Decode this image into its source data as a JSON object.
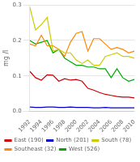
{
  "chart_data": {
    "type": "line",
    "x": [
      1992,
      1993,
      1994,
      1995,
      1996,
      1997,
      1998,
      1999,
      2000,
      2001,
      2002,
      2003,
      2004,
      2005,
      2006,
      2007,
      2008,
      2009,
      2010
    ],
    "series": [
      {
        "name": "East (190)",
        "color": "#cc0000",
        "values": [
          0.113,
          0.095,
          0.088,
          0.103,
          0.102,
          0.085,
          0.092,
          0.088,
          0.09,
          0.085,
          0.065,
          0.06,
          0.053,
          0.048,
          0.045,
          0.042,
          0.04,
          0.04,
          0.038
        ]
      },
      {
        "name": "North (201)",
        "color": "#0000cc",
        "values": [
          0.012,
          0.011,
          0.011,
          0.012,
          0.012,
          0.011,
          0.011,
          0.012,
          0.011,
          0.011,
          0.011,
          0.01,
          0.01,
          0.011,
          0.01,
          0.01,
          0.01,
          0.01,
          0.01
        ]
      },
      {
        "name": "South (78)",
        "color": "#cccc00",
        "values": [
          0.295,
          0.23,
          0.245,
          0.265,
          0.17,
          0.175,
          0.165,
          0.165,
          0.145,
          0.135,
          0.145,
          0.13,
          0.13,
          0.155,
          0.16,
          0.165,
          0.155,
          0.155,
          0.15
        ]
      },
      {
        "name": "Southeast (32)",
        "color": "#ff8800",
        "values": [
          0.19,
          0.185,
          0.215,
          0.185,
          0.185,
          0.175,
          0.155,
          0.195,
          0.22,
          0.225,
          0.17,
          0.205,
          0.205,
          0.19,
          0.175,
          0.18,
          0.175,
          0.165,
          0.17
        ]
      },
      {
        "name": "West (526)",
        "color": "#00aa00",
        "values": [
          0.2,
          0.19,
          0.195,
          0.2,
          0.165,
          0.175,
          0.15,
          0.14,
          0.13,
          0.13,
          0.125,
          0.125,
          0.12,
          0.12,
          0.095,
          0.12,
          0.095,
          0.085,
          0.09
        ]
      }
    ],
    "ylabel": "mg /l",
    "xlim": [
      1992,
      2010
    ],
    "xticks": [
      1992,
      1994,
      1996,
      1998,
      2000,
      2002,
      2004,
      2006,
      2008,
      2010
    ],
    "ylim": [
      0.0,
      0.3
    ],
    "yticks": [
      {
        "value": 0.0,
        "label": "0.0"
      },
      0.1,
      0.2,
      0.3
    ],
    "grid": "y",
    "legend": "bottom"
  }
}
